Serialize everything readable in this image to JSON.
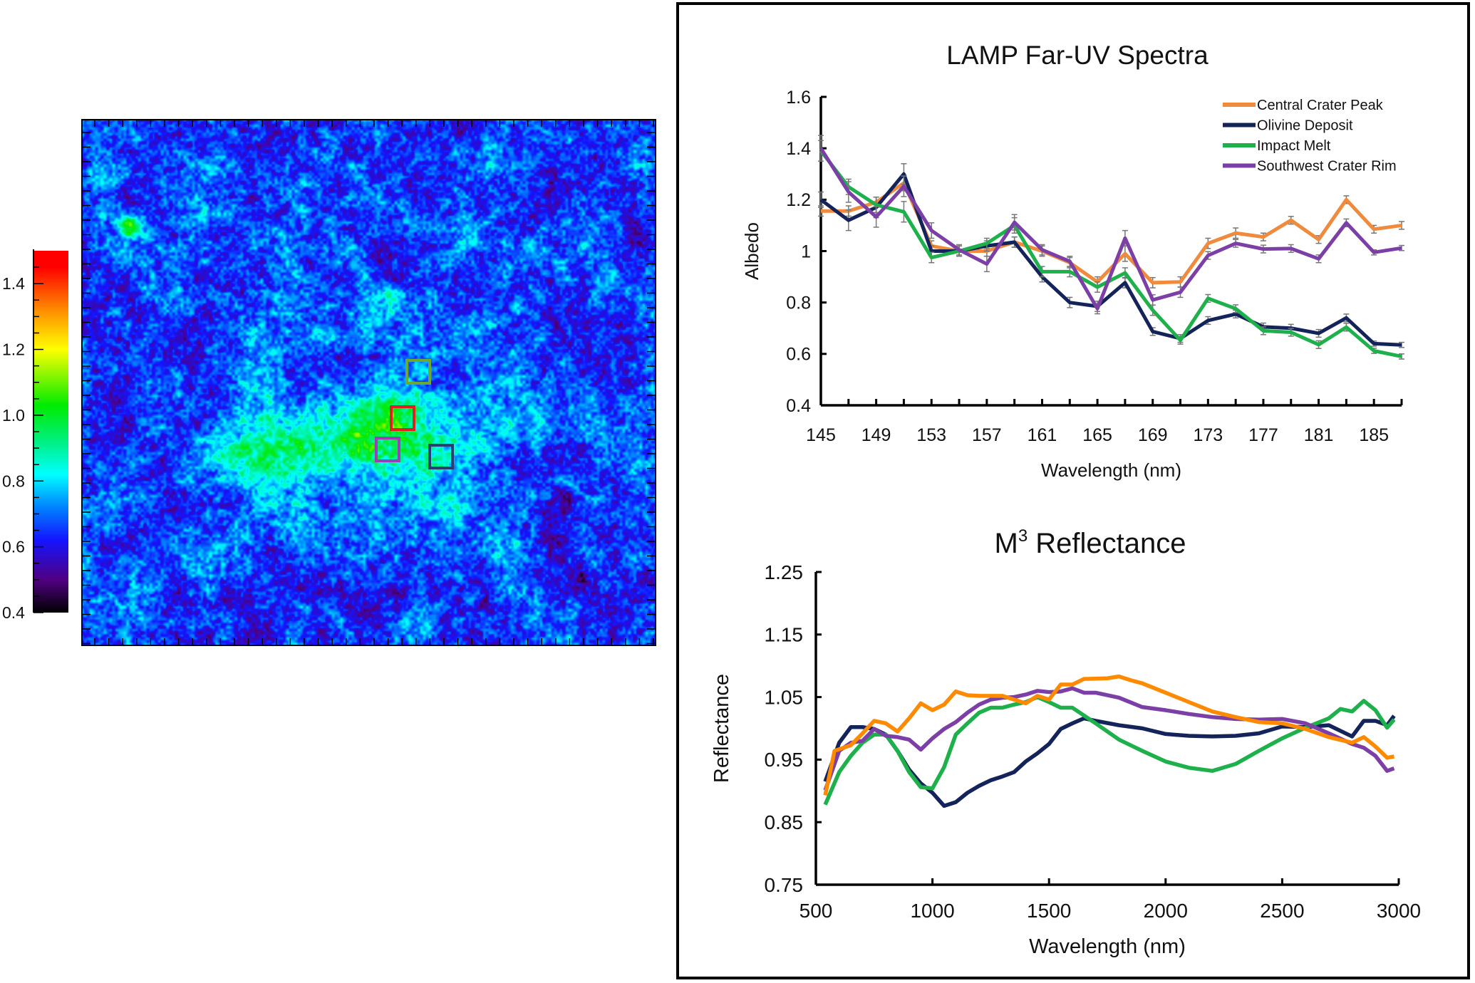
{
  "colors": {
    "Central Crater Peak": "#F08A3C",
    "Olivine Deposit": "#14245A",
    "Impact Melt": "#1DB04B",
    "Southwest Crater Rim": "#7B3FA6",
    "m3_orange": "#FF8A00",
    "error_bar": "#777777"
  },
  "map": {
    "type": "heatmap",
    "colormap": "rainbow (black-purple-blue-cyan-green-yellow-red)",
    "colorbar": {
      "range": [
        0.4,
        1.5
      ],
      "ticks": [
        "0.4",
        "0.6",
        "0.8",
        "1.0",
        "1.2",
        "1.4"
      ]
    },
    "roi_boxes": [
      {
        "label": "Impact Melt region",
        "color": "#6FA82E"
      },
      {
        "label": "Central Crater Peak region",
        "color": "#E02020"
      },
      {
        "label": "Southwest Crater Rim region",
        "color": "#9A3FB5"
      },
      {
        "label": "Olivine Deposit region",
        "color": "#2A3D6E"
      }
    ]
  },
  "chart_data": [
    {
      "type": "line",
      "title": "LAMP Far-UV Spectra",
      "xlabel": "Wavelength (nm)",
      "ylabel": "Albedo",
      "xlim": [
        145,
        187
      ],
      "ylim": [
        0.4,
        1.6
      ],
      "xticks": [
        "145",
        "149",
        "153",
        "157",
        "161",
        "165",
        "169",
        "173",
        "177",
        "181",
        "185"
      ],
      "yticks": [
        "0.4",
        "0.6",
        "0.8",
        "1",
        "1.2",
        "1.4",
        "1.6"
      ],
      "legend": "top-right",
      "error_bars": true,
      "x": [
        145,
        147,
        149,
        151,
        153,
        155,
        157,
        159,
        161,
        163,
        165,
        167,
        169,
        171,
        173,
        175,
        177,
        179,
        181,
        183,
        185,
        187
      ],
      "series": [
        {
          "name": "Central Crater Peak",
          "values": [
            1.156,
            1.156,
            1.19,
            1.265,
            1.02,
            1.0,
            1.0,
            1.035,
            1.0,
            0.955,
            0.88,
            0.99,
            0.877,
            0.88,
            1.03,
            1.07,
            1.055,
            1.12,
            1.045,
            1.2,
            1.085,
            1.1
          ],
          "errors": [
            0.02,
            0.02,
            0.02,
            0.03,
            0.02,
            0.02,
            0.02,
            0.02,
            0.02,
            0.02,
            0.02,
            0.03,
            0.02,
            0.02,
            0.02,
            0.02,
            0.015,
            0.015,
            0.015,
            0.015,
            0.015,
            0.015
          ]
        },
        {
          "name": "Olivine Deposit",
          "values": [
            1.2,
            1.12,
            1.17,
            1.3,
            1.0,
            1.0,
            1.02,
            1.035,
            0.9,
            0.8,
            0.785,
            0.877,
            0.687,
            0.66,
            0.73,
            0.755,
            0.705,
            0.7,
            0.68,
            0.74,
            0.64,
            0.635
          ],
          "errors": [
            0.03,
            0.04,
            0.04,
            0.04,
            0.02,
            0.02,
            0.02,
            0.02,
            0.02,
            0.02,
            0.02,
            0.02,
            0.015,
            0.015,
            0.015,
            0.015,
            0.015,
            0.015,
            0.015,
            0.015,
            0.01,
            0.01
          ]
        },
        {
          "name": "Impact Melt",
          "values": [
            1.39,
            1.25,
            1.18,
            1.153,
            0.975,
            1.0,
            1.03,
            1.1,
            0.92,
            0.92,
            0.86,
            0.915,
            0.77,
            0.653,
            0.816,
            0.776,
            0.69,
            0.684,
            0.636,
            0.704,
            0.612,
            0.59
          ],
          "errors": [
            0.04,
            0.03,
            0.03,
            0.04,
            0.02,
            0.02,
            0.02,
            0.03,
            0.02,
            0.02,
            0.02,
            0.02,
            0.02,
            0.015,
            0.015,
            0.015,
            0.015,
            0.015,
            0.015,
            0.015,
            0.01,
            0.01
          ]
        },
        {
          "name": "Southwest Crater Rim",
          "values": [
            1.4,
            1.23,
            1.133,
            1.252,
            1.08,
            1.005,
            0.95,
            1.112,
            1.005,
            0.96,
            0.776,
            1.05,
            0.81,
            0.84,
            0.983,
            1.03,
            1.008,
            1.01,
            0.97,
            1.11,
            0.995,
            1.012
          ],
          "errors": [
            0.05,
            0.04,
            0.04,
            0.04,
            0.03,
            0.02,
            0.03,
            0.03,
            0.02,
            0.02,
            0.02,
            0.03,
            0.02,
            0.02,
            0.015,
            0.015,
            0.015,
            0.015,
            0.015,
            0.015,
            0.01,
            0.01
          ]
        }
      ]
    },
    {
      "type": "line",
      "title": "M",
      "title_superscript": "3",
      "title_rest": " Reflectance",
      "xlabel": "Wavelength (nm)",
      "ylabel": "Reflectance",
      "xlim": [
        500,
        3000
      ],
      "ylim": [
        0.75,
        1.25
      ],
      "xticks": [
        "500",
        "1000",
        "1500",
        "2000",
        "2500",
        "3000"
      ],
      "yticks": [
        "0.75",
        "0.85",
        "0.95",
        "1.05",
        "1.15",
        "1.25"
      ],
      "series": [
        {
          "legend_ref": "Olivine Deposit",
          "color": "#14245A",
          "x": [
            540,
            600,
            650,
            700,
            750,
            800,
            850,
            900,
            950,
            1000,
            1050,
            1100,
            1150,
            1200,
            1250,
            1300,
            1350,
            1400,
            1450,
            1500,
            1550,
            1600,
            1650,
            1700,
            1800,
            1900,
            2000,
            2100,
            2200,
            2300,
            2400,
            2500,
            2600,
            2700,
            2800,
            2850,
            2900,
            2950,
            2980
          ],
          "values": [
            0.915,
            0.977,
            1.002,
            1.002,
            0.999,
            0.99,
            0.964,
            0.934,
            0.912,
            0.897,
            0.876,
            0.882,
            0.897,
            0.908,
            0.917,
            0.923,
            0.93,
            0.947,
            0.96,
            0.975,
            0.999,
            1.008,
            1.016,
            1.012,
            1.005,
            1.0,
            0.991,
            0.988,
            0.987,
            0.988,
            0.992,
            1.003,
            1.002,
            1.005,
            0.987,
            1.012,
            1.012,
            1.005,
            1.02
          ]
        },
        {
          "legend_ref": "Impact Melt",
          "color": "#1DB04B",
          "x": [
            540,
            600,
            650,
            700,
            750,
            800,
            850,
            900,
            950,
            1000,
            1050,
            1100,
            1150,
            1200,
            1250,
            1300,
            1350,
            1400,
            1450,
            1500,
            1550,
            1600,
            1700,
            1800,
            1900,
            2000,
            2100,
            2200,
            2300,
            2400,
            2500,
            2600,
            2700,
            2750,
            2800,
            2850,
            2900,
            2950,
            2980
          ],
          "values": [
            0.878,
            0.93,
            0.956,
            0.977,
            0.99,
            0.99,
            0.964,
            0.93,
            0.906,
            0.904,
            0.938,
            0.99,
            1.008,
            1.025,
            1.033,
            1.033,
            1.038,
            1.042,
            1.05,
            1.042,
            1.033,
            1.033,
            1.008,
            0.982,
            0.964,
            0.947,
            0.937,
            0.932,
            0.943,
            0.964,
            0.984,
            1.001,
            1.016,
            1.031,
            1.027,
            1.044,
            1.029,
            1.001,
            1.014
          ]
        },
        {
          "legend_ref": "Southwest Crater Rim",
          "color": "#7B3FA6",
          "x": [
            540,
            600,
            650,
            700,
            750,
            800,
            850,
            900,
            950,
            1000,
            1050,
            1100,
            1150,
            1200,
            1250,
            1300,
            1350,
            1400,
            1450,
            1500,
            1550,
            1600,
            1650,
            1700,
            1800,
            1900,
            2000,
            2100,
            2200,
            2300,
            2400,
            2500,
            2600,
            2700,
            2800,
            2850,
            2900,
            2950,
            2980
          ],
          "values": [
            0.901,
            0.964,
            0.977,
            0.98,
            0.999,
            0.988,
            0.986,
            0.982,
            0.966,
            0.984,
            0.999,
            1.01,
            1.025,
            1.038,
            1.046,
            1.049,
            1.05,
            1.054,
            1.06,
            1.058,
            1.059,
            1.064,
            1.057,
            1.057,
            1.049,
            1.034,
            1.029,
            1.023,
            1.018,
            1.015,
            1.014,
            1.015,
            1.008,
            0.992,
            0.975,
            0.969,
            0.956,
            0.932,
            0.936
          ]
        },
        {
          "legend_ref": "Central Crater Peak",
          "color": "#FF8A00",
          "x": [
            540,
            580,
            650,
            700,
            750,
            800,
            850,
            900,
            950,
            1000,
            1050,
            1100,
            1150,
            1200,
            1300,
            1400,
            1450,
            1500,
            1550,
            1600,
            1650,
            1750,
            1800,
            1850,
            1900,
            2000,
            2100,
            2200,
            2300,
            2400,
            2500,
            2600,
            2700,
            2800,
            2850,
            2900,
            2950,
            2980
          ],
          "values": [
            0.893,
            0.964,
            0.973,
            0.992,
            1.012,
            1.008,
            0.995,
            1.016,
            1.04,
            1.029,
            1.038,
            1.059,
            1.053,
            1.052,
            1.052,
            1.04,
            1.052,
            1.046,
            1.07,
            1.07,
            1.079,
            1.08,
            1.083,
            1.077,
            1.072,
            1.057,
            1.042,
            1.027,
            1.018,
            1.01,
            1.008,
            0.999,
            0.986,
            0.977,
            0.986,
            0.971,
            0.953,
            0.955
          ]
        }
      ]
    }
  ]
}
